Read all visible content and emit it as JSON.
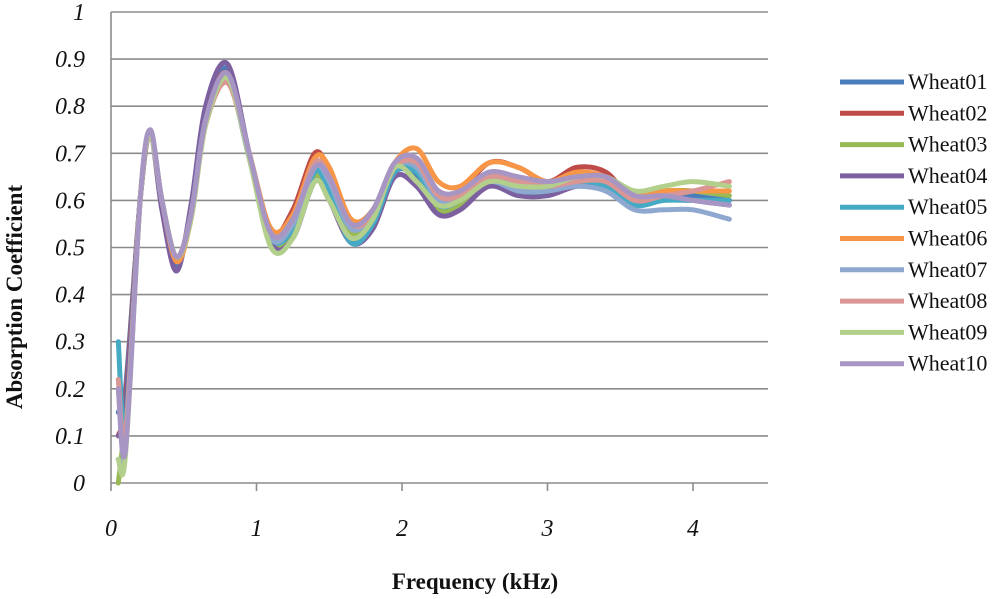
{
  "chart_data": {
    "type": "line",
    "xlabel": "Frequency (kHz)",
    "ylabel": "Absorption Coefficient",
    "xlim": [
      0,
      4.5
    ],
    "ylim": [
      0,
      1
    ],
    "xticks": [
      "0",
      "1",
      "2",
      "3",
      "4"
    ],
    "yticks": [
      "0",
      "0.1",
      "0.2",
      "0.3",
      "0.4",
      "0.5",
      "0.6",
      "0.7",
      "0.8",
      "0.9",
      "1"
    ],
    "grid": "horizontal",
    "legend": "right",
    "x": [
      0.05,
      0.1,
      0.2,
      0.27,
      0.35,
      0.45,
      0.55,
      0.65,
      0.8,
      0.95,
      1.1,
      1.25,
      1.4,
      1.5,
      1.65,
      1.8,
      1.95,
      2.1,
      2.25,
      2.4,
      2.6,
      2.8,
      3.0,
      3.2,
      3.4,
      3.6,
      3.8,
      4.0,
      4.25
    ],
    "series": [
      {
        "name": "Wheat01",
        "color": "#4a7ebb",
        "values": [
          0.15,
          0.2,
          0.6,
          0.74,
          0.6,
          0.46,
          0.58,
          0.78,
          0.88,
          0.7,
          0.52,
          0.54,
          0.67,
          0.62,
          0.52,
          0.55,
          0.66,
          0.65,
          0.59,
          0.6,
          0.65,
          0.63,
          0.63,
          0.64,
          0.64,
          0.6,
          0.62,
          0.61,
          0.6
        ]
      },
      {
        "name": "Wheat02",
        "color": "#be4b48",
        "values": [
          0.1,
          0.18,
          0.6,
          0.74,
          0.6,
          0.47,
          0.58,
          0.78,
          0.87,
          0.7,
          0.53,
          0.58,
          0.7,
          0.66,
          0.55,
          0.57,
          0.66,
          0.68,
          0.62,
          0.62,
          0.68,
          0.67,
          0.64,
          0.67,
          0.66,
          0.6,
          0.61,
          0.6,
          0.6
        ]
      },
      {
        "name": "Wheat03",
        "color": "#98b954",
        "values": [
          0.0,
          0.15,
          0.6,
          0.74,
          0.6,
          0.48,
          0.57,
          0.77,
          0.86,
          0.69,
          0.51,
          0.53,
          0.65,
          0.61,
          0.53,
          0.56,
          0.67,
          0.64,
          0.58,
          0.59,
          0.64,
          0.62,
          0.63,
          0.65,
          0.64,
          0.61,
          0.62,
          0.62,
          0.61
        ]
      },
      {
        "name": "Wheat04",
        "color": "#7d60a0",
        "values": [
          0.1,
          0.16,
          0.6,
          0.74,
          0.58,
          0.45,
          0.59,
          0.8,
          0.89,
          0.7,
          0.51,
          0.52,
          0.64,
          0.6,
          0.51,
          0.54,
          0.65,
          0.63,
          0.57,
          0.58,
          0.63,
          0.61,
          0.61,
          0.63,
          0.63,
          0.6,
          0.61,
          0.6,
          0.59
        ]
      },
      {
        "name": "Wheat05",
        "color": "#46aac5",
        "values": [
          0.3,
          0.12,
          0.6,
          0.74,
          0.6,
          0.48,
          0.57,
          0.77,
          0.86,
          0.69,
          0.52,
          0.54,
          0.66,
          0.62,
          0.51,
          0.55,
          0.66,
          0.66,
          0.59,
          0.6,
          0.64,
          0.62,
          0.62,
          0.64,
          0.63,
          0.59,
          0.6,
          0.6,
          0.6
        ]
      },
      {
        "name": "Wheat06",
        "color": "#f79646",
        "values": [
          0.2,
          0.1,
          0.6,
          0.74,
          0.6,
          0.47,
          0.56,
          0.76,
          0.85,
          0.7,
          0.54,
          0.57,
          0.69,
          0.67,
          0.56,
          0.58,
          0.68,
          0.71,
          0.64,
          0.63,
          0.68,
          0.67,
          0.64,
          0.66,
          0.65,
          0.61,
          0.62,
          0.62,
          0.62
        ]
      },
      {
        "name": "Wheat07",
        "color": "#8fa8d0",
        "values": [
          0.05,
          0.08,
          0.6,
          0.74,
          0.6,
          0.48,
          0.57,
          0.77,
          0.86,
          0.69,
          0.52,
          0.55,
          0.67,
          0.64,
          0.54,
          0.57,
          0.67,
          0.67,
          0.6,
          0.6,
          0.64,
          0.62,
          0.62,
          0.63,
          0.62,
          0.58,
          0.58,
          0.58,
          0.56
        ]
      },
      {
        "name": "Wheat08",
        "color": "#d99694",
        "values": [
          0.22,
          0.1,
          0.6,
          0.74,
          0.6,
          0.48,
          0.57,
          0.76,
          0.85,
          0.7,
          0.53,
          0.56,
          0.68,
          0.65,
          0.55,
          0.57,
          0.67,
          0.68,
          0.61,
          0.61,
          0.65,
          0.64,
          0.63,
          0.64,
          0.64,
          0.6,
          0.61,
          0.62,
          0.64
        ]
      },
      {
        "name": "Wheat09",
        "color": "#b3cf8c",
        "values": [
          0.05,
          0.06,
          0.6,
          0.74,
          0.6,
          0.48,
          0.56,
          0.76,
          0.86,
          0.69,
          0.5,
          0.52,
          0.64,
          0.6,
          0.52,
          0.56,
          0.67,
          0.64,
          0.59,
          0.6,
          0.64,
          0.63,
          0.63,
          0.65,
          0.65,
          0.62,
          0.63,
          0.64,
          0.63
        ]
      },
      {
        "name": "Wheat10",
        "color": "#a796c4",
        "values": [
          0.2,
          0.07,
          0.6,
          0.75,
          0.6,
          0.48,
          0.57,
          0.77,
          0.87,
          0.7,
          0.53,
          0.56,
          0.67,
          0.65,
          0.55,
          0.58,
          0.68,
          0.69,
          0.62,
          0.62,
          0.66,
          0.65,
          0.64,
          0.65,
          0.65,
          0.61,
          0.61,
          0.6,
          0.59
        ]
      }
    ]
  }
}
